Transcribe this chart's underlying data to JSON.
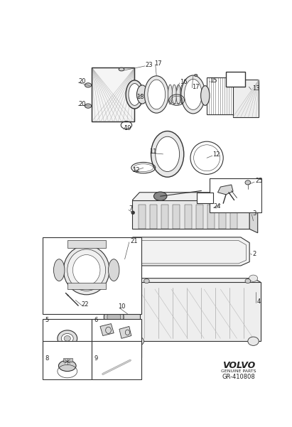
{
  "bg_color": "#ffffff",
  "fig_width": 4.11,
  "fig_height": 6.01,
  "dpi": 100,
  "line_color": "#333333",
  "text_color": "#222222",
  "light_gray": "#e8e8e8",
  "mid_gray": "#cccccc",
  "dark_gray": "#999999",
  "volvo_text": "VOLVO",
  "volvo_sub": "GENUINE PARTS",
  "part_number": "GR-410808"
}
